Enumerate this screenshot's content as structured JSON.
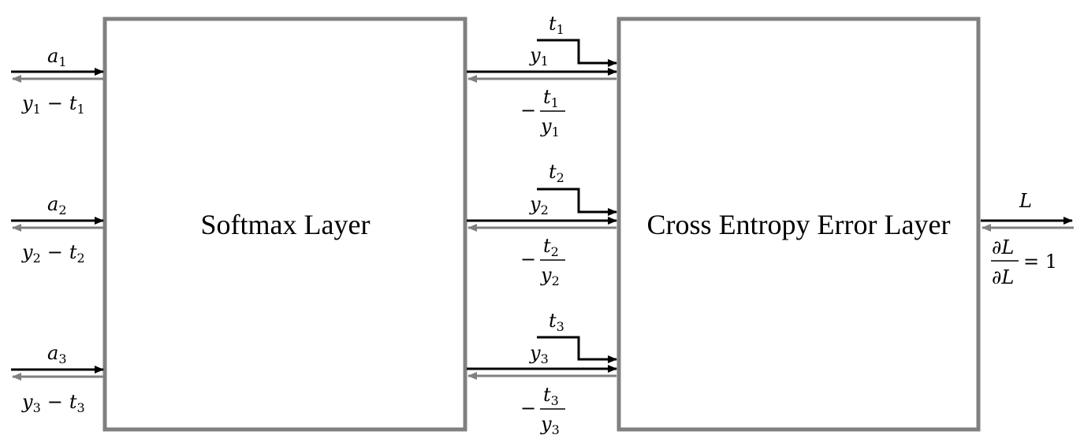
{
  "blocks": {
    "softmax": {
      "label": "Softmax Layer"
    },
    "cross_entropy": {
      "label": "Cross Entropy Error Layer"
    }
  },
  "inputs": [
    {
      "forward": "a",
      "sub": "1",
      "backward_y": "y",
      "backward_t": "t",
      "minus": "−"
    },
    {
      "forward": "a",
      "sub": "2",
      "backward_y": "y",
      "backward_t": "t",
      "minus": "−"
    },
    {
      "forward": "a",
      "sub": "3",
      "backward_y": "y",
      "backward_t": "t",
      "minus": "−"
    }
  ],
  "middle": [
    {
      "t": "t",
      "y": "y",
      "sub": "1",
      "grad_minus": "−",
      "grad_num": "t",
      "grad_den": "y"
    },
    {
      "t": "t",
      "y": "y",
      "sub": "2",
      "grad_minus": "−",
      "grad_num": "t",
      "grad_den": "y"
    },
    {
      "t": "t",
      "y": "y",
      "sub": "3",
      "grad_minus": "−",
      "grad_num": "t",
      "grad_den": "y"
    }
  ],
  "output": {
    "forward": "L",
    "grad_num": "∂L",
    "grad_den": "∂L",
    "grad_eq": "= 1"
  },
  "colors": {
    "forward": "#000000",
    "backward": "#808080",
    "border": "#808080"
  }
}
